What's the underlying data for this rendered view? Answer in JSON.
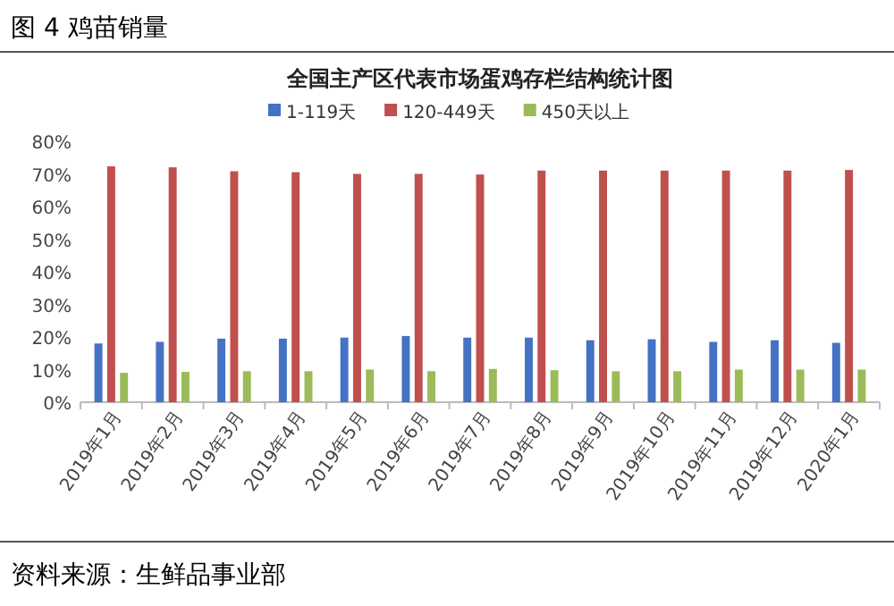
{
  "chart_data": {
    "type": "bar",
    "title": "全国主产区代表市场蛋鸡存栏结构统计图",
    "subtitle": "图 4  鸡苗销量",
    "categories": [
      "2019年1月",
      "2019年2月",
      "2019年3月",
      "2019年4月",
      "2019年5月",
      "2019年6月",
      "2019年7月",
      "2019年8月",
      "2019年9月",
      "2019年10月",
      "2019年11月",
      "2019年12月",
      "2020年1月"
    ],
    "series": [
      {
        "name": "1-119天",
        "color": "#4472c4",
        "values": [
          18,
          18.5,
          19.5,
          19.5,
          19.8,
          20.3,
          19.8,
          19.8,
          19,
          19.3,
          18.5,
          19,
          18.2
        ]
      },
      {
        "name": "120-449天",
        "color": "#c0504d",
        "values": [
          72.3,
          72,
          70.8,
          70.5,
          70,
          70,
          69.8,
          71,
          71,
          71,
          71,
          71,
          71.2
        ]
      },
      {
        "name": "450天以上",
        "color": "#9bbb59",
        "values": [
          9,
          9.3,
          9.5,
          9.5,
          10,
          9.5,
          10.2,
          9.8,
          9.5,
          9.5,
          10,
          10,
          10
        ]
      }
    ],
    "ylim": [
      0,
      80
    ],
    "yticks": [
      {
        "value": 0,
        "label": "0%"
      },
      {
        "value": 10,
        "label": "10%"
      },
      {
        "value": 20,
        "label": "20%"
      },
      {
        "value": 30,
        "label": "30%"
      },
      {
        "value": 40,
        "label": "40%"
      },
      {
        "value": 50,
        "label": "50%"
      },
      {
        "value": 60,
        "label": "60%"
      },
      {
        "value": 70,
        "label": "70%"
      },
      {
        "value": 80,
        "label": "80%"
      }
    ],
    "grid": false,
    "legend": "top",
    "annotations": [
      "资料来源：生鲜品事业部"
    ]
  }
}
